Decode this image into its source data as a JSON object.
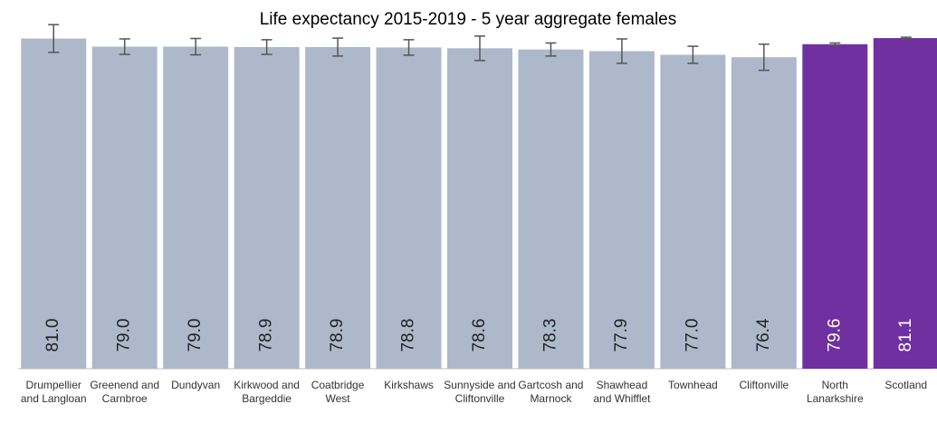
{
  "chart_data": {
    "type": "bar",
    "title": "Life expectancy 2015-2019 - 5 year aggregate females",
    "categories": [
      "Drumpellier and Langloan",
      "Greenend and Carnbroe",
      "Dundyvan",
      "Kirkwood and Bargeddie",
      "Coatbridge West",
      "Kirkshaws",
      "Sunnyside and Cliftonville",
      "Gartcosh and Marnock",
      "Shawhead and Whifflet",
      "Townhead",
      "Cliftonville",
      "North Lanarkshire",
      "Scotland"
    ],
    "values": [
      81.0,
      79.0,
      79.0,
      78.9,
      78.9,
      78.8,
      78.6,
      78.3,
      77.9,
      77.0,
      76.4,
      79.6,
      81.1
    ],
    "value_labels": [
      "81.0",
      "79.0",
      "79.0",
      "78.9",
      "78.9",
      "78.8",
      "78.6",
      "78.3",
      "77.9",
      "77.0",
      "76.4",
      "79.6",
      "81.1"
    ],
    "errors": [
      3.4,
      1.9,
      2.0,
      1.8,
      2.2,
      1.9,
      3.0,
      1.6,
      3.0,
      2.1,
      3.2,
      0.3,
      0.2
    ],
    "colors": [
      "#adb9ca",
      "#adb9ca",
      "#adb9ca",
      "#adb9ca",
      "#adb9ca",
      "#adb9ca",
      "#adb9ca",
      "#adb9ca",
      "#adb9ca",
      "#adb9ca",
      "#adb9ca",
      "#7030a0",
      "#7030a0"
    ],
    "ylim": [
      0,
      82
    ]
  }
}
